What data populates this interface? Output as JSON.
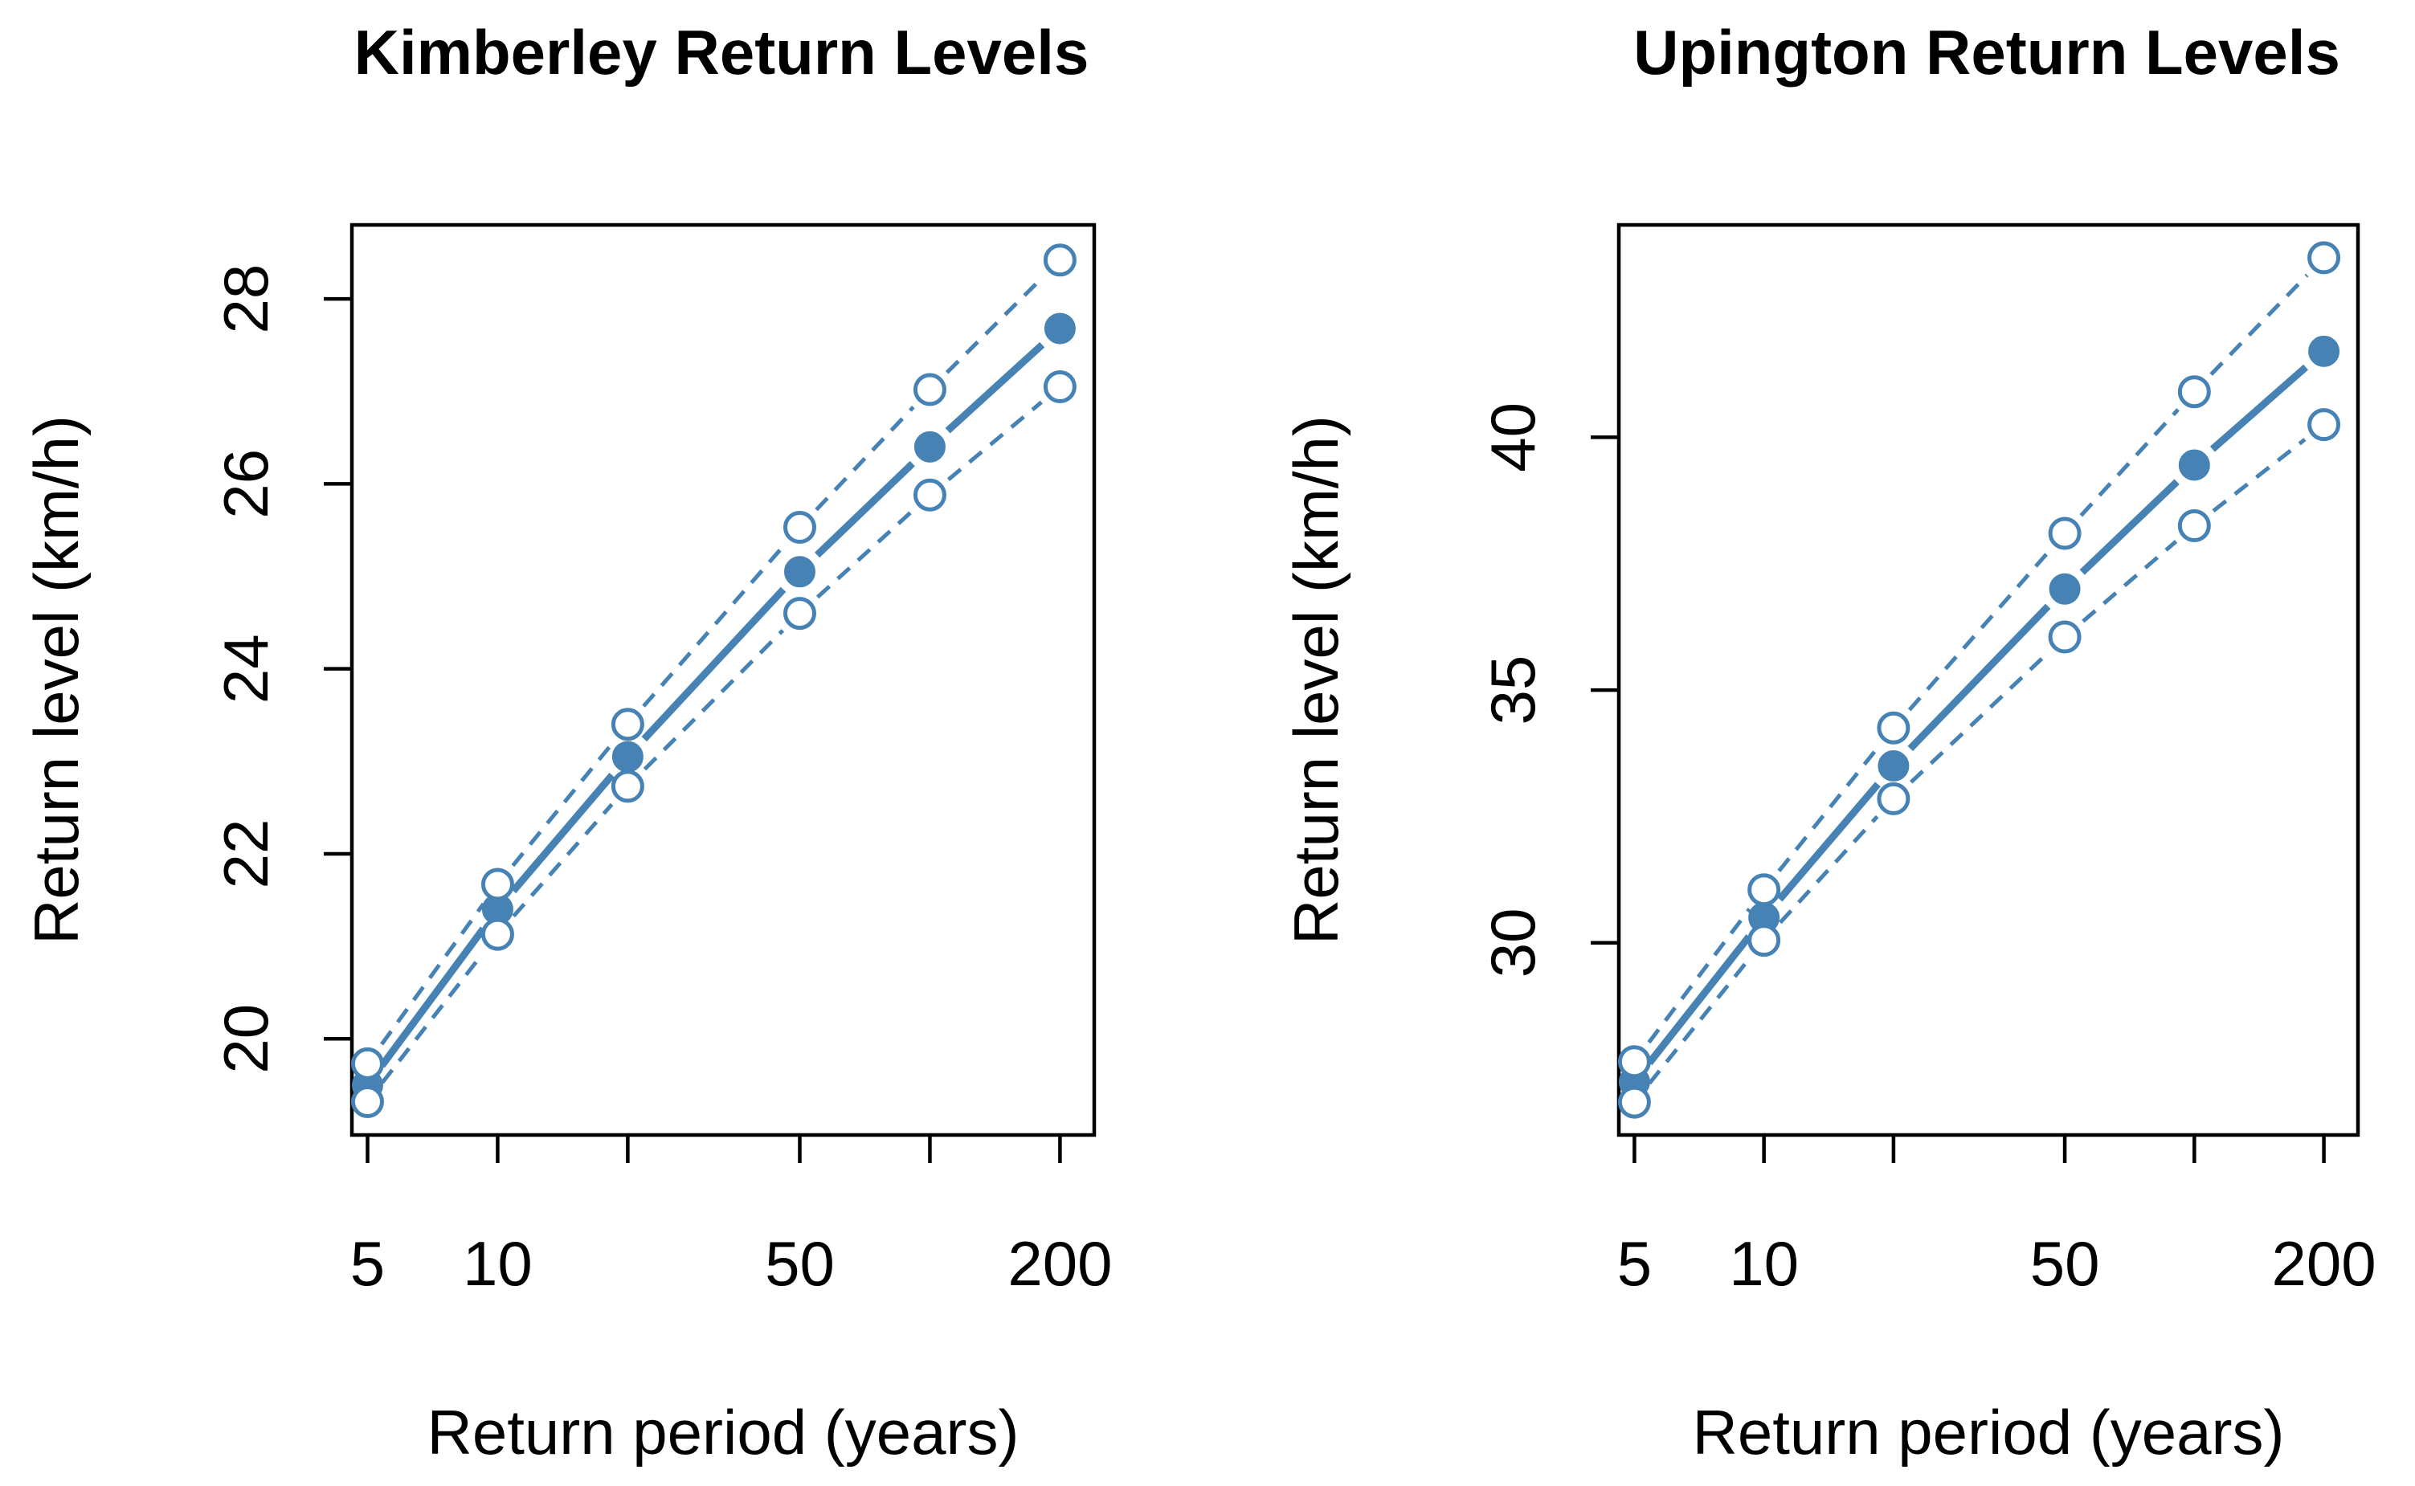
{
  "colors": {
    "series": "#4682B4",
    "axis": "#000000",
    "background": "#FFFFFF"
  },
  "chart_data": [
    {
      "type": "line",
      "title": "Kimberley Return Levels",
      "xlabel": "Return period (years)",
      "ylabel": "Return level (km/h)",
      "x_scale": "log",
      "x": [
        5,
        10,
        20,
        50,
        100,
        200
      ],
      "xticks": [
        5,
        10,
        20,
        50,
        100,
        200
      ],
      "xtick_labels": [
        "5",
        "10",
        "",
        "50",
        "",
        "200"
      ],
      "xlim": [
        4.6,
        240
      ],
      "yticks": [
        20,
        22,
        24,
        26,
        28
      ],
      "ylim": [
        18.96,
        28.8
      ],
      "series": [
        {
          "role": "estimate",
          "style": "solid",
          "marker": "filled-circle",
          "values": [
            19.5,
            21.4,
            23.05,
            25.05,
            26.4,
            27.68
          ]
        },
        {
          "role": "upper",
          "style": "dashed",
          "marker": "open-circle",
          "values": [
            19.73,
            21.67,
            23.4,
            25.53,
            27.02,
            28.42
          ]
        },
        {
          "role": "lower",
          "style": "dashed",
          "marker": "open-circle",
          "values": [
            19.32,
            21.13,
            22.73,
            24.6,
            25.88,
            27.05
          ]
        }
      ]
    },
    {
      "type": "line",
      "title": "Upington Return Levels",
      "xlabel": "Return period (years)",
      "ylabel": "Return level (km/h)",
      "x_scale": "log",
      "x": [
        5,
        10,
        20,
        50,
        100,
        200
      ],
      "xticks": [
        5,
        10,
        20,
        50,
        100,
        200
      ],
      "xtick_labels": [
        "5",
        "10",
        "",
        "50",
        "",
        "200"
      ],
      "xlim": [
        4.6,
        240
      ],
      "yticks": [
        30,
        35,
        40
      ],
      "ylim": [
        26.2,
        44.2
      ],
      "series": [
        {
          "role": "estimate",
          "style": "solid",
          "marker": "filled-circle",
          "values": [
            27.25,
            30.5,
            33.5,
            37.0,
            39.45,
            41.7
          ]
        },
        {
          "role": "upper",
          "style": "dashed",
          "marker": "open-circle",
          "values": [
            27.65,
            31.05,
            34.25,
            38.1,
            40.9,
            43.55
          ]
        },
        {
          "role": "lower",
          "style": "dashed",
          "marker": "open-circle",
          "values": [
            26.85,
            30.05,
            32.85,
            36.05,
            38.25,
            40.25
          ]
        }
      ]
    }
  ]
}
